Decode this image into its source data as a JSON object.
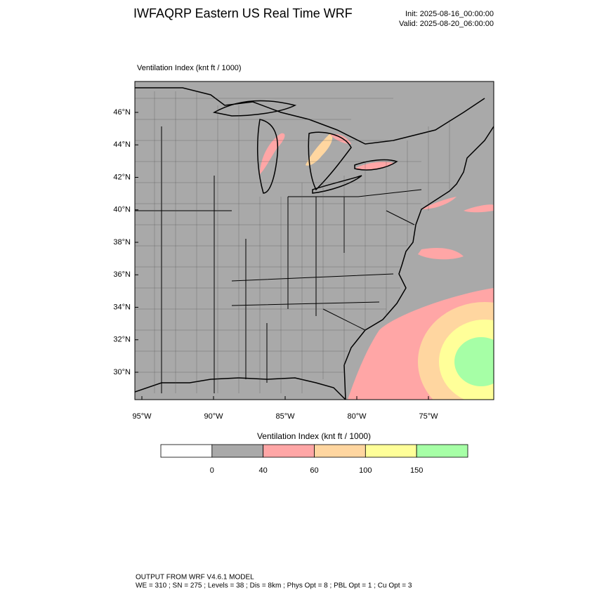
{
  "header": {
    "title": "IWFAQRP Eastern US Real Time WRF",
    "init": "Init: 2025-08-16_00:00:00",
    "valid": "Valid: 2025-08-20_06:00:00"
  },
  "map": {
    "label": "Ventilation Index   (knt ft / 1000)",
    "lat_labels": [
      "46°N",
      "44°N",
      "42°N",
      "40°N",
      "38°N",
      "36°N",
      "34°N",
      "32°N",
      "30°N"
    ],
    "lon_labels": [
      "95°W",
      "90°W",
      "85°W",
      "80°W",
      "75°W"
    ]
  },
  "colorbar": {
    "title": "Ventilation Index  (knt ft / 1000)",
    "colors": [
      "#ffffff",
      "#a9a9a9",
      "#ffa6a6",
      "#ffd6a0",
      "#ffff99",
      "#a6ffa6"
    ],
    "labels": [
      "0",
      "40",
      "60",
      "100",
      "150"
    ]
  },
  "footer": {
    "line1": "OUTPUT FROM WRF V4.6.1 MODEL",
    "line2": "WE = 310 ; SN = 275 ; Levels = 38 ; Dis = 8km ; Phys Opt = 8 ; PBL Opt = 1 ; Cu Opt = 3"
  }
}
